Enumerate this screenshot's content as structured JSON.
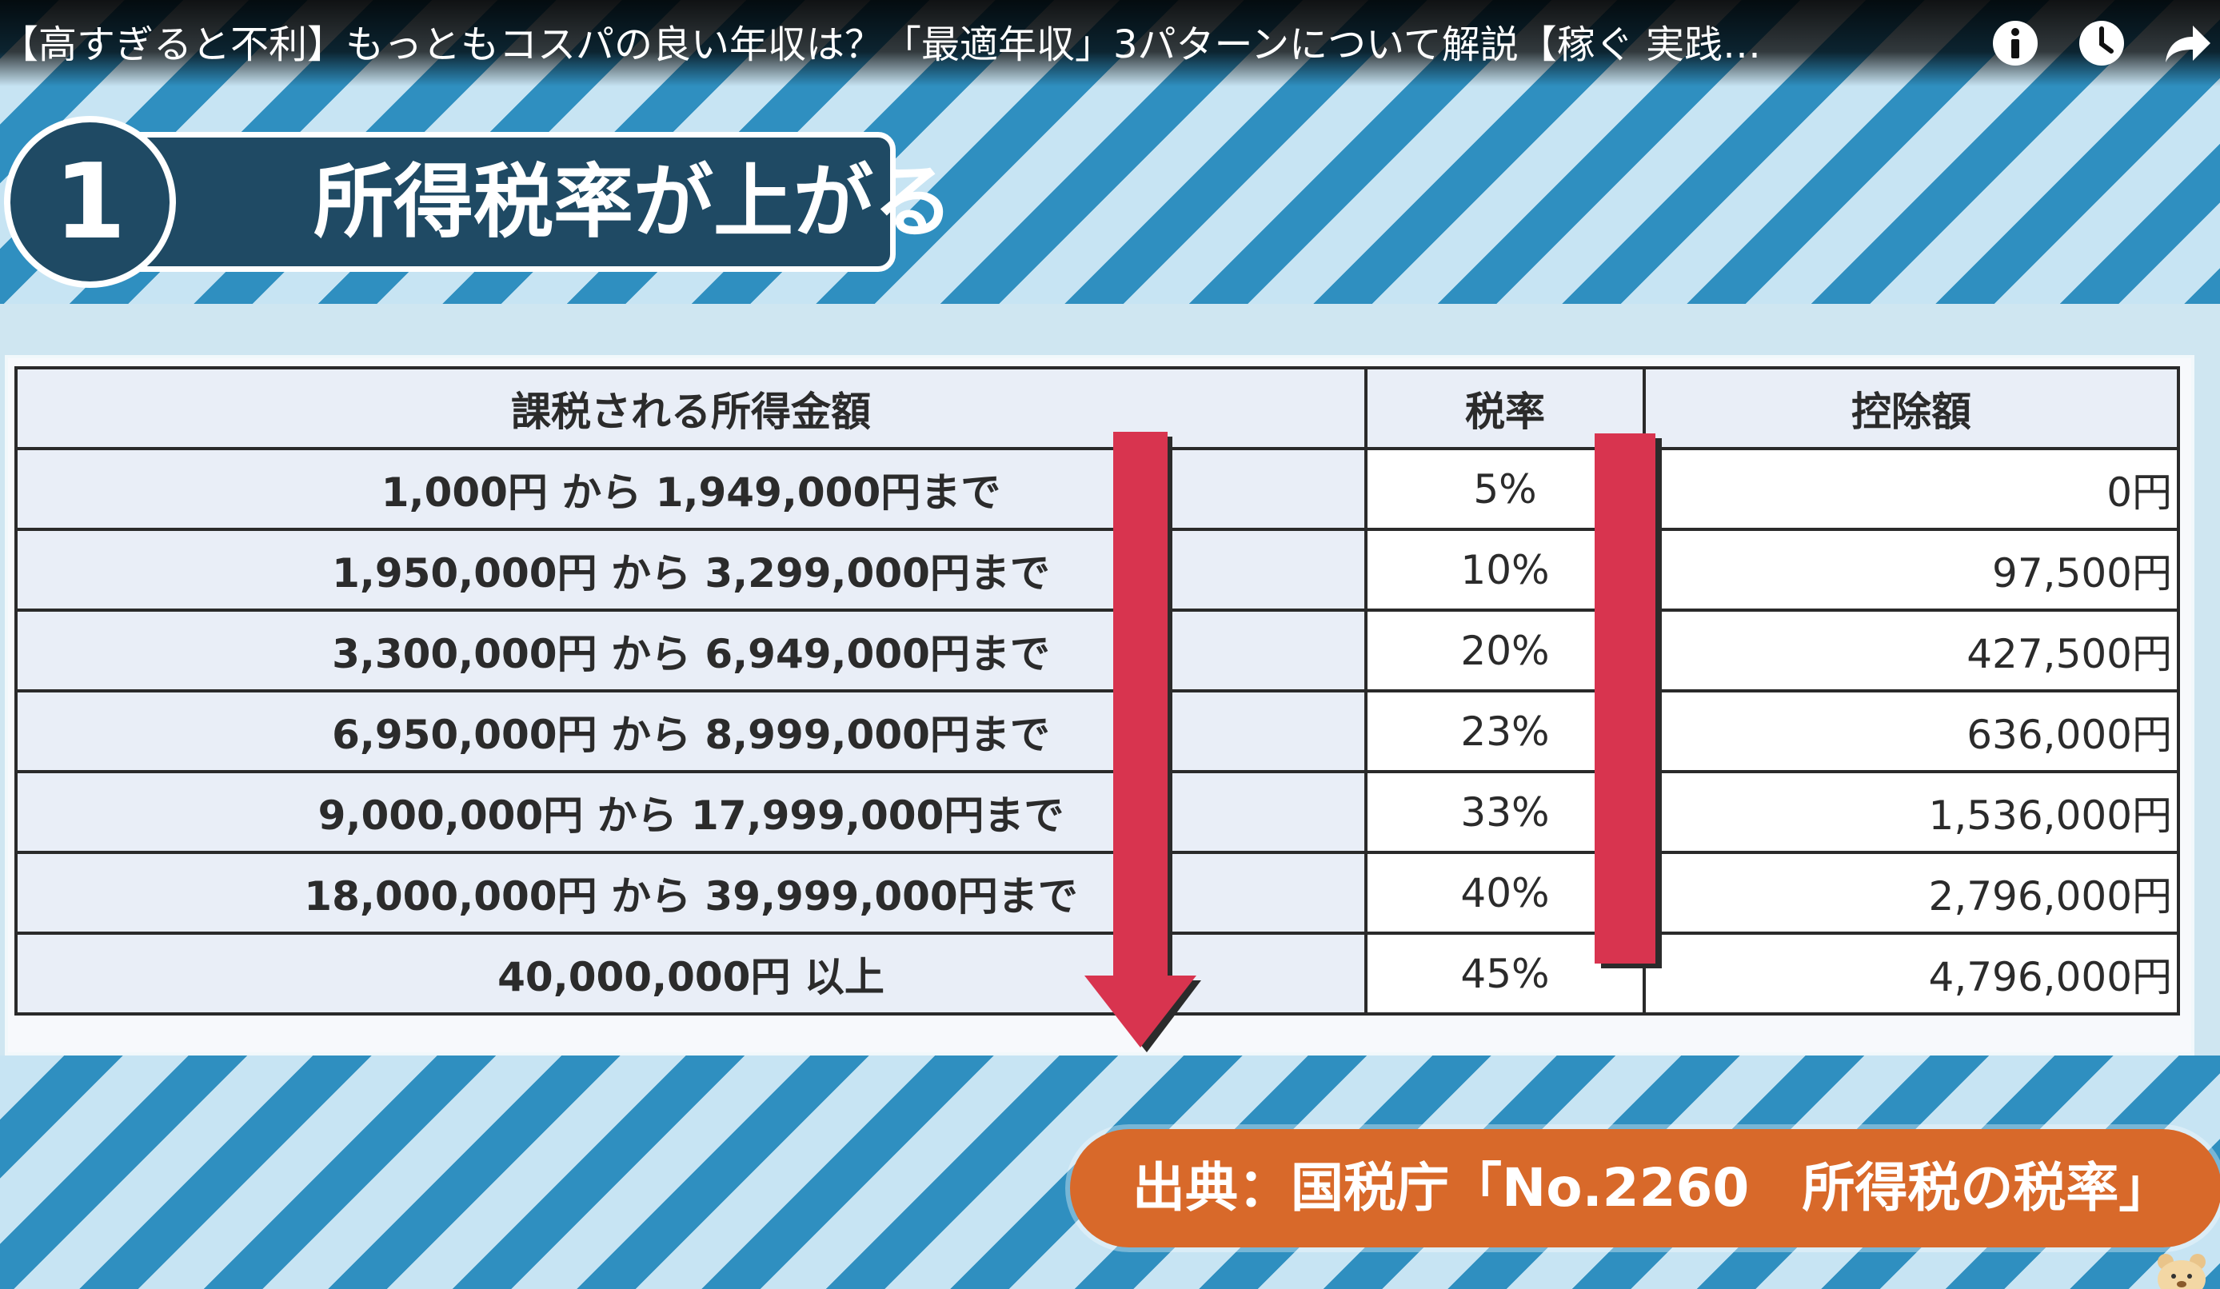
{
  "video": {
    "title": "【高すぎると不利】もっともコスパの良い年収は？「最適年収」3パターンについて解説【稼ぐ 実践…"
  },
  "controls": {
    "info_icon": "info-icon",
    "clock_icon": "watch-later-icon",
    "share_icon": "share-icon"
  },
  "heading": {
    "number": "1",
    "text": "所得税率が上がる"
  },
  "table": {
    "headers": [
      "課税される所得金額",
      "税率",
      "控除額"
    ],
    "rows": [
      {
        "range": "1,000円 から 1,949,000円まで",
        "rate": "5%",
        "deduction": "0円"
      },
      {
        "range": "1,950,000円 から 3,299,000円まで",
        "rate": "10%",
        "deduction": "97,500円"
      },
      {
        "range": "3,300,000円 から 6,949,000円まで",
        "rate": "20%",
        "deduction": "427,500円"
      },
      {
        "range": "6,950,000円 から 8,999,000円まで",
        "rate": "23%",
        "deduction": "636,000円"
      },
      {
        "range": "9,000,000円 から 17,999,000円まで",
        "rate": "33%",
        "deduction": "1,536,000円"
      },
      {
        "range": "18,000,000円 から 39,999,000円まで",
        "rate": "40%",
        "deduction": "2,796,000円"
      },
      {
        "range": "40,000,000円 以上",
        "rate": "45%",
        "deduction": "4,796,000円"
      }
    ]
  },
  "source": {
    "text": "出典：国税庁「No.2260　所得税の税率」"
  },
  "colors": {
    "heading_bg": "#1f4a64",
    "arrow_red": "#d8344f",
    "source_orange": "#d8692a",
    "stripe_blue": "#2f8fc0",
    "stripe_light": "#c7e4f3"
  }
}
